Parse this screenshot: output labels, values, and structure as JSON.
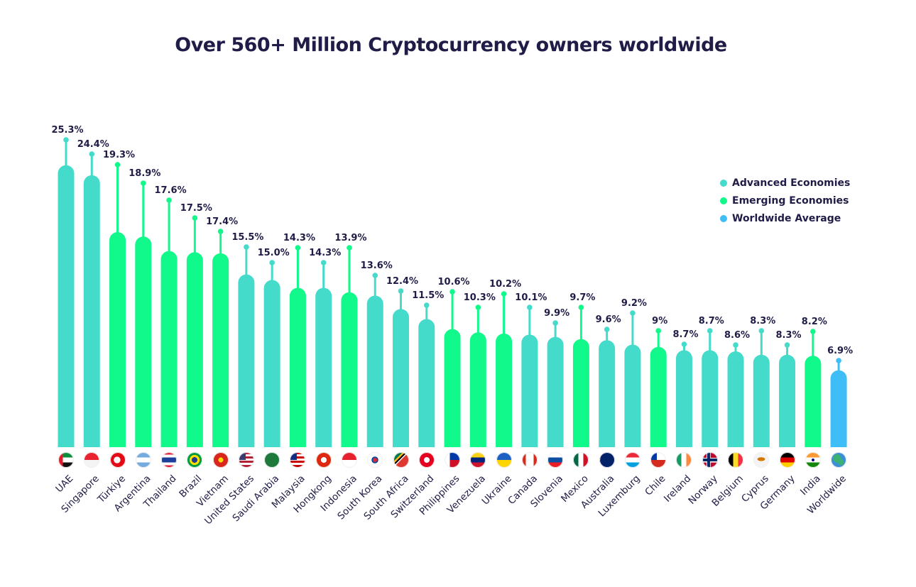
{
  "chart_data": {
    "type": "bar",
    "title": "Over 560+ Million Cryptocurrency owners worldwide",
    "xlabel": "",
    "ylabel": "",
    "ylim": [
      0,
      26
    ],
    "grid": false,
    "legend_position": "right",
    "categories": [
      "UAE",
      "Singapore",
      "Türkiye",
      "Argentina",
      "Thailand",
      "Brazil",
      "Vietnam",
      "United States",
      "Saudi Arabia",
      "Malaysia",
      "Hongkong",
      "Indonesia",
      "South Korea",
      "South Africa",
      "Switzerland",
      "Philippines",
      "Venezuela",
      "Ukraine",
      "Canada",
      "Slovenia",
      "Mexico",
      "Australia",
      "Luxemburg",
      "Chile",
      "Ireland",
      "Norway",
      "Belgium",
      "Cyprus",
      "Germany",
      "India",
      "Worldwide"
    ],
    "values": [
      25.3,
      24.4,
      19.3,
      18.9,
      17.6,
      17.5,
      17.4,
      15.5,
      15.0,
      14.3,
      14.3,
      13.9,
      13.6,
      12.4,
      11.5,
      10.6,
      10.3,
      10.2,
      10.1,
      9.9,
      9.7,
      9.6,
      9.2,
      9,
      8.7,
      8.7,
      8.6,
      8.3,
      8.3,
      8.2,
      6.9
    ],
    "value_labels": [
      "25.3%",
      "24.4%",
      "19.3%",
      "18.9%",
      "17.6%",
      "17.5%",
      "17.4%",
      "15.5%",
      "15.0%",
      "14.3%",
      "14.3%",
      "13.9%",
      "13.6%",
      "12.4%",
      "11.5%",
      "10.6%",
      "10.3%",
      "10.2%",
      "10.1%",
      "9.9%",
      "9.7%",
      "9.6%",
      "9.2%",
      "9%",
      "8.7%",
      "8.7%",
      "8.6%",
      "8.3%",
      "8.3%",
      "8.2%",
      "6.9%"
    ],
    "groups": [
      "adv",
      "adv",
      "emg",
      "emg",
      "emg",
      "emg",
      "emg",
      "adv",
      "adv",
      "emg",
      "adv",
      "emg",
      "adv",
      "adv",
      "adv",
      "emg",
      "emg",
      "emg",
      "adv",
      "adv",
      "emg",
      "adv",
      "adv",
      "emg",
      "adv",
      "adv",
      "adv",
      "adv",
      "adv",
      "emg",
      "avg"
    ],
    "series": [
      {
        "key": "adv",
        "name": "Advanced Economies",
        "color": "#45dbcb"
      },
      {
        "key": "emg",
        "name": "Emerging Economies",
        "color": "#10f98a"
      },
      {
        "key": "avg",
        "name": "Worldwide Average",
        "color": "#3fbdf7"
      }
    ]
  }
}
